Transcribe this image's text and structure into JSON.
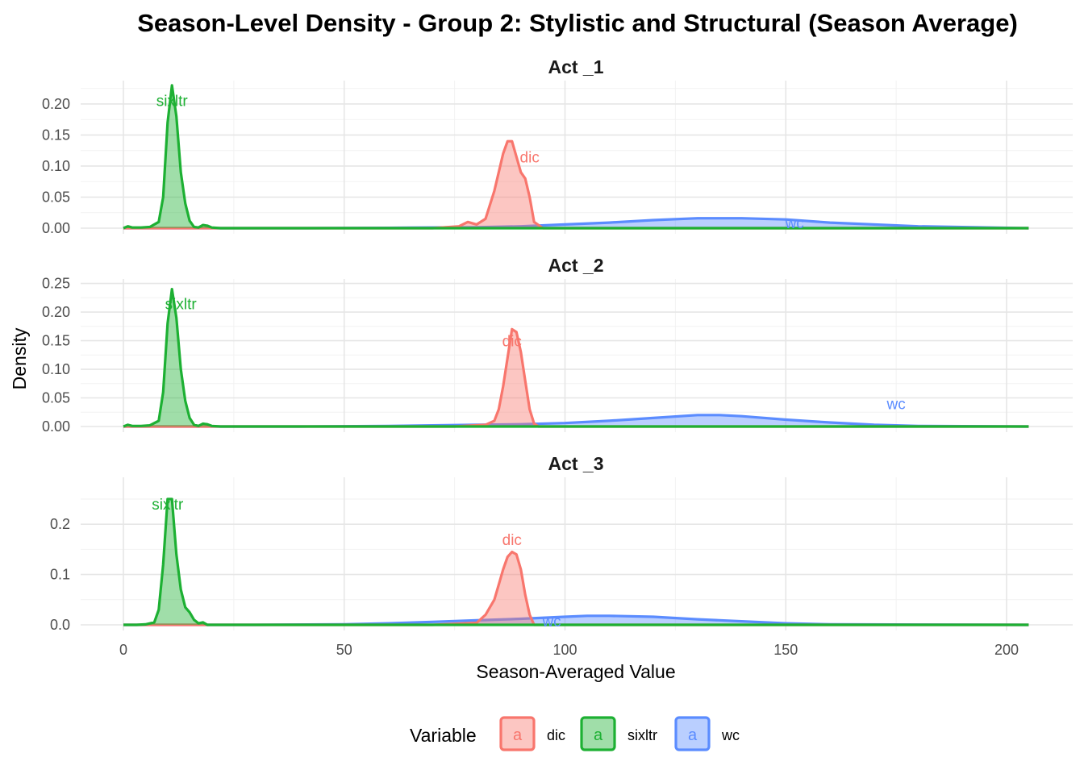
{
  "chart_data": {
    "type": "area",
    "title": "Season-Level Density -  Group 2: Stylistic and Structural (Season Average)",
    "xlabel": "Season-Averaged Value",
    "ylabel": "Density",
    "xlim": [
      -10,
      205
    ],
    "x_ticks": [
      0,
      50,
      100,
      150,
      200
    ],
    "grid": true,
    "legend": {
      "title": "Variable",
      "position": "bottom",
      "key_glyph": "a",
      "entries": [
        {
          "name": "dic",
          "color": "#F8766D"
        },
        {
          "name": "sixltr",
          "color": "#1DB033"
        },
        {
          "name": "wc",
          "color": "#5B8CFF"
        }
      ]
    },
    "colors": {
      "dic": "#F8766D",
      "sixltr": "#1DB033",
      "wc": "#5B8CFF"
    },
    "facets": [
      {
        "title": "Act _1",
        "ylim": [
          0,
          0.235
        ],
        "y_ticks": [
          0.0,
          0.05,
          0.1,
          0.15,
          0.2
        ],
        "y_tick_labels": [
          "0.00",
          "0.05",
          "0.10",
          "0.15",
          "0.20"
        ],
        "labels": [
          {
            "series": "sixltr",
            "text": "sixltr",
            "x": 11,
            "y": 0.206
          },
          {
            "series": "dic",
            "text": "dic",
            "x": 92,
            "y": 0.115
          },
          {
            "series": "wc",
            "text": "wc",
            "x": 152,
            "y": 0.009
          }
        ],
        "series": [
          {
            "name": "wc",
            "x": [
              0,
              40,
              60,
              80,
              90,
              100,
              110,
              120,
              130,
              140,
              150,
              160,
              180,
              205
            ],
            "y": [
              0.0,
              0.0,
              0.0005,
              0.0015,
              0.003,
              0.006,
              0.009,
              0.013,
              0.016,
              0.016,
              0.014,
              0.009,
              0.003,
              0.0
            ]
          },
          {
            "name": "dic",
            "x": [
              0,
              70,
              76,
              78,
              80,
              82,
              84,
              86,
              87,
              88,
              89,
              90,
              91,
              92,
              93,
              95,
              205
            ],
            "y": [
              0.0,
              0.0,
              0.003,
              0.01,
              0.006,
              0.015,
              0.06,
              0.12,
              0.14,
              0.14,
              0.115,
              0.09,
              0.08,
              0.05,
              0.01,
              0.0,
              0.0
            ]
          },
          {
            "name": "sixltr",
            "x": [
              0,
              1,
              2,
              4,
              6,
              8,
              9,
              10,
              11,
              12,
              13,
              14,
              15,
              16,
              17,
              18,
              19,
              20,
              22,
              205
            ],
            "y": [
              0.0,
              0.003,
              0.001,
              0.001,
              0.002,
              0.01,
              0.05,
              0.17,
              0.23,
              0.18,
              0.09,
              0.04,
              0.012,
              0.002,
              0.001,
              0.005,
              0.004,
              0.001,
              0.0,
              0.0
            ]
          }
        ]
      },
      {
        "title": "Act _2",
        "ylim": [
          0,
          0.255
        ],
        "y_ticks": [
          0.0,
          0.05,
          0.1,
          0.15,
          0.2,
          0.25
        ],
        "y_tick_labels": [
          "0.00",
          "0.05",
          "0.10",
          "0.15",
          "0.20",
          "0.25"
        ],
        "labels": [
          {
            "series": "sixltr",
            "text": "sixltr",
            "x": 13,
            "y": 0.215
          },
          {
            "series": "dic",
            "text": "dic",
            "x": 88,
            "y": 0.15
          },
          {
            "series": "wc",
            "text": "wc",
            "x": 175,
            "y": 0.04
          }
        ],
        "series": [
          {
            "name": "wc",
            "x": [
              0,
              40,
              60,
              80,
              90,
              100,
              110,
              120,
              130,
              135,
              140,
              150,
              160,
              170,
              180,
              205
            ],
            "y": [
              0.0,
              0.0,
              0.001,
              0.003,
              0.004,
              0.006,
              0.01,
              0.015,
              0.02,
              0.02,
              0.018,
              0.012,
              0.007,
              0.003,
              0.001,
              0.0
            ]
          },
          {
            "name": "dic",
            "x": [
              0,
              75,
              82,
              84,
              85,
              86,
              87,
              88,
              89,
              90,
              91,
              92,
              93,
              94,
              205
            ],
            "y": [
              0.0,
              0.0,
              0.003,
              0.01,
              0.03,
              0.07,
              0.12,
              0.17,
              0.165,
              0.13,
              0.08,
              0.03,
              0.005,
              0.0,
              0.0
            ]
          },
          {
            "name": "sixltr",
            "x": [
              0,
              1,
              2,
              4,
              6,
              8,
              9,
              10,
              11,
              12,
              13,
              14,
              15,
              16,
              17,
              18,
              19,
              20,
              22,
              205
            ],
            "y": [
              0.0,
              0.003,
              0.001,
              0.001,
              0.002,
              0.01,
              0.06,
              0.18,
              0.24,
              0.19,
              0.1,
              0.045,
              0.015,
              0.003,
              0.001,
              0.005,
              0.004,
              0.001,
              0.0,
              0.0
            ]
          }
        ]
      },
      {
        "title": "Act _3",
        "ylim": [
          0,
          0.29
        ],
        "y_ticks": [
          0.0,
          0.1,
          0.2
        ],
        "y_tick_labels": [
          "0.0",
          "0.1",
          "0.2"
        ],
        "labels": [
          {
            "series": "sixltr",
            "text": "sixltr",
            "x": 10,
            "y": 0.24
          },
          {
            "series": "dic",
            "text": "dic",
            "x": 88,
            "y": 0.17
          },
          {
            "series": "wc",
            "text": "wc",
            "x": 97,
            "y": 0.008
          }
        ],
        "series": [
          {
            "name": "wc",
            "x": [
              0,
              30,
              50,
              60,
              70,
              80,
              90,
              100,
              105,
              110,
              120,
              130,
              140,
              150,
              160,
              205
            ],
            "y": [
              0.0,
              0.0,
              0.001,
              0.003,
              0.006,
              0.009,
              0.012,
              0.016,
              0.018,
              0.018,
              0.016,
              0.011,
              0.007,
              0.003,
              0.001,
              0.0
            ]
          },
          {
            "name": "dic",
            "x": [
              0,
              70,
              80,
              82,
              84,
              85,
              86,
              87,
              88,
              89,
              90,
              91,
              92,
              93,
              205
            ],
            "y": [
              0.0,
              0.0,
              0.004,
              0.02,
              0.05,
              0.08,
              0.11,
              0.135,
              0.145,
              0.14,
              0.11,
              0.06,
              0.02,
              0.0,
              0.0
            ]
          },
          {
            "name": "sixltr",
            "x": [
              0,
              3,
              5,
              7,
              8,
              9,
              10,
              11,
              12,
              13,
              14,
              15,
              16,
              17,
              18,
              19,
              205
            ],
            "y": [
              0.0,
              0.0,
              0.001,
              0.005,
              0.03,
              0.12,
              0.25,
              0.25,
              0.14,
              0.07,
              0.035,
              0.025,
              0.01,
              0.003,
              0.005,
              0.0,
              0.0
            ]
          }
        ]
      }
    ]
  }
}
